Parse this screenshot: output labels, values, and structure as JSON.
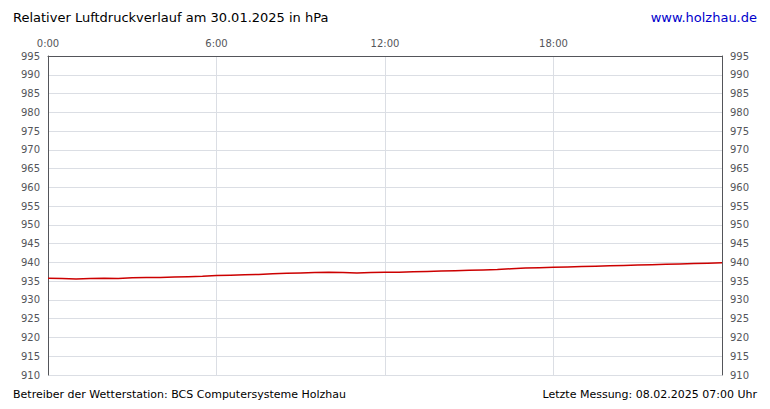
{
  "chart_data": {
    "type": "line",
    "title": "Relativer Luftdruckverlauf am 30.01.2025 in hPa",
    "annotations": [
      "www.holzhau.de",
      "Betreiber der Wetterstation: BCS Computersysteme Holzhau",
      "Letzte Messung: 08.02.2025 07:00 Uhr"
    ],
    "x": [
      0.0,
      0.5,
      1.0,
      1.5,
      2.0,
      2.5,
      3.0,
      3.5,
      4.0,
      4.5,
      5.0,
      5.5,
      6.0,
      6.5,
      7.0,
      7.5,
      8.0,
      8.5,
      9.0,
      9.5,
      10.0,
      10.5,
      11.0,
      11.5,
      12.0,
      12.5,
      13.0,
      13.5,
      14.0,
      14.5,
      15.0,
      15.5,
      16.0,
      16.5,
      17.0,
      17.5,
      18.0,
      18.5,
      19.0,
      19.5,
      20.0,
      20.5,
      21.0,
      21.5,
      22.0,
      22.5,
      23.0,
      23.5,
      24.0
    ],
    "values": [
      935.8,
      935.7,
      935.6,
      935.7,
      935.8,
      935.7,
      935.9,
      936.0,
      936.0,
      936.1,
      936.2,
      936.3,
      936.5,
      936.6,
      936.7,
      936.8,
      937.0,
      937.1,
      937.2,
      937.3,
      937.4,
      937.3,
      937.2,
      937.3,
      937.4,
      937.4,
      937.5,
      937.6,
      937.7,
      937.8,
      937.9,
      938.0,
      938.1,
      938.3,
      938.5,
      938.6,
      938.7,
      938.8,
      938.9,
      939.0,
      939.1,
      939.2,
      939.3,
      939.4,
      939.5,
      939.6,
      939.7,
      939.8,
      939.9
    ],
    "color": "#cc0000",
    "xlim": [
      0,
      24
    ],
    "xticks": [
      {
        "value": 0,
        "label": "0:00"
      },
      {
        "value": 6,
        "label": "6:00"
      },
      {
        "value": 12,
        "label": "12:00"
      },
      {
        "value": 18,
        "label": "18:00"
      }
    ],
    "ylim": [
      910,
      995
    ],
    "yticks": [
      910,
      915,
      920,
      925,
      930,
      935,
      940,
      945,
      950,
      955,
      960,
      965,
      970,
      975,
      980,
      985,
      990,
      995
    ],
    "grid": true
  }
}
